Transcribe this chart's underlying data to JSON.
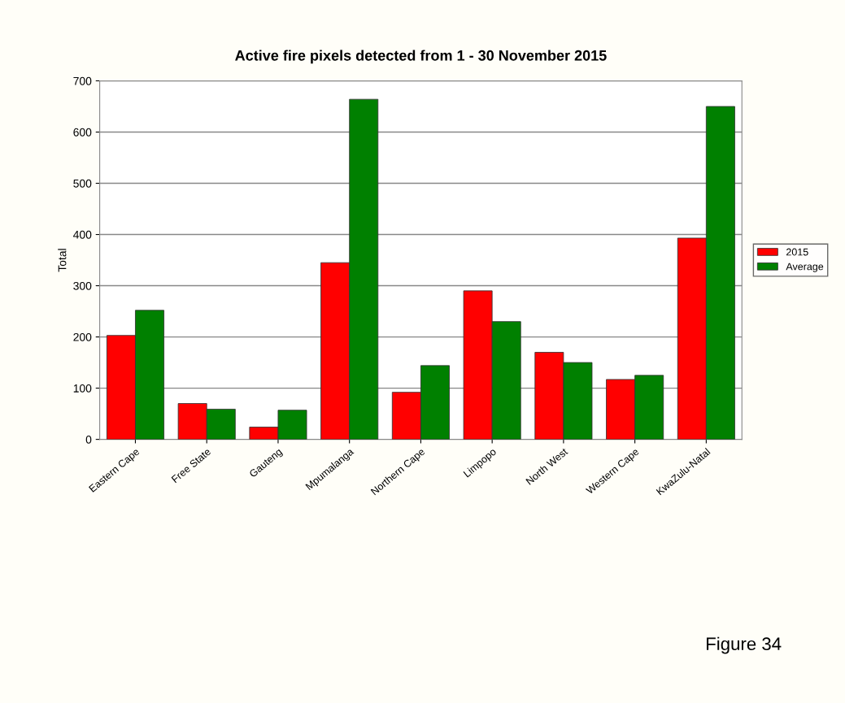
{
  "chart_data": {
    "type": "bar",
    "title": "Active fire pixels detected from 1 - 30 November 2015",
    "ylabel": "Total",
    "categories": [
      "Eastern Cape",
      "Free State",
      "Gauteng",
      "Mpumalanga",
      "Northern Cape",
      "Limpopo",
      "North West",
      "Western Cape",
      "KwaZulu-Natal"
    ],
    "series": [
      {
        "name": "2015",
        "color": "#ff0000",
        "values": [
          203,
          70,
          24,
          345,
          92,
          290,
          170,
          117,
          393
        ]
      },
      {
        "name": "Average",
        "color": "#008000",
        "values": [
          252,
          59,
          57,
          664,
          144,
          230,
          150,
          125,
          650
        ]
      }
    ],
    "ylim": [
      0,
      700
    ],
    "yticks": [
      0,
      100,
      200,
      300,
      400,
      500,
      600,
      700
    ],
    "grid": "y",
    "legend": "right",
    "annotations": [
      "Figure 34"
    ]
  }
}
